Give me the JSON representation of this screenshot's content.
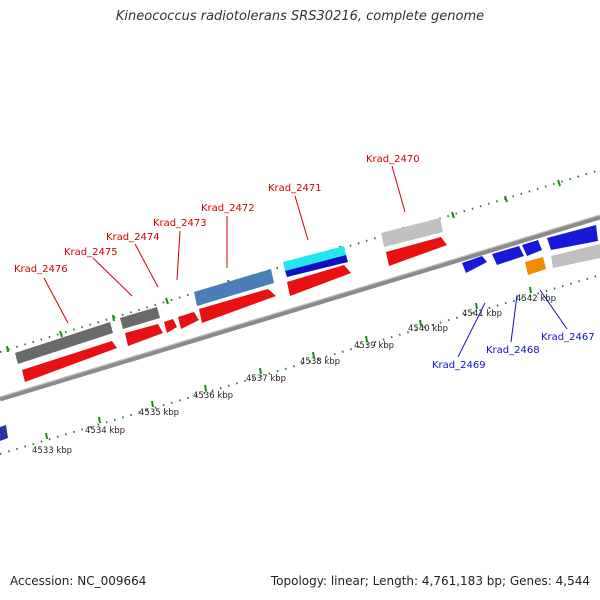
{
  "title": "Kineococcus radiotolerans SRS30216, complete genome",
  "footer": {
    "accession": "Accession: NC_009664",
    "topology": "Topology: linear; Length: 4,761,183 bp; Genes: 4,544"
  },
  "colors": {
    "backbone": "#8a8a8a",
    "tick": "#1a8a1a",
    "forward_label": "#d10000",
    "reverse_label": "#1010c8"
  },
  "kbp_labels": [
    "4533 kbp",
    "4534 kbp",
    "4535 kbp",
    "4536 kbp",
    "4537 kbp",
    "4538 kbp",
    "4539 kbp",
    "4540 kbp",
    "4541 kbp",
    "4542 kbp"
  ],
  "gene_labels": [
    {
      "name": "Krad_2476",
      "strand": "forward"
    },
    {
      "name": "Krad_2475",
      "strand": "forward"
    },
    {
      "name": "Krad_2474",
      "strand": "forward"
    },
    {
      "name": "Krad_2473",
      "strand": "forward"
    },
    {
      "name": "Krad_2472",
      "strand": "forward"
    },
    {
      "name": "Krad_2471",
      "strand": "forward"
    },
    {
      "name": "Krad_2470",
      "strand": "forward"
    },
    {
      "name": "Krad_2469",
      "strand": "reverse"
    },
    {
      "name": "Krad_2468",
      "strand": "reverse"
    },
    {
      "name": "Krad_2467",
      "strand": "reverse"
    }
  ]
}
